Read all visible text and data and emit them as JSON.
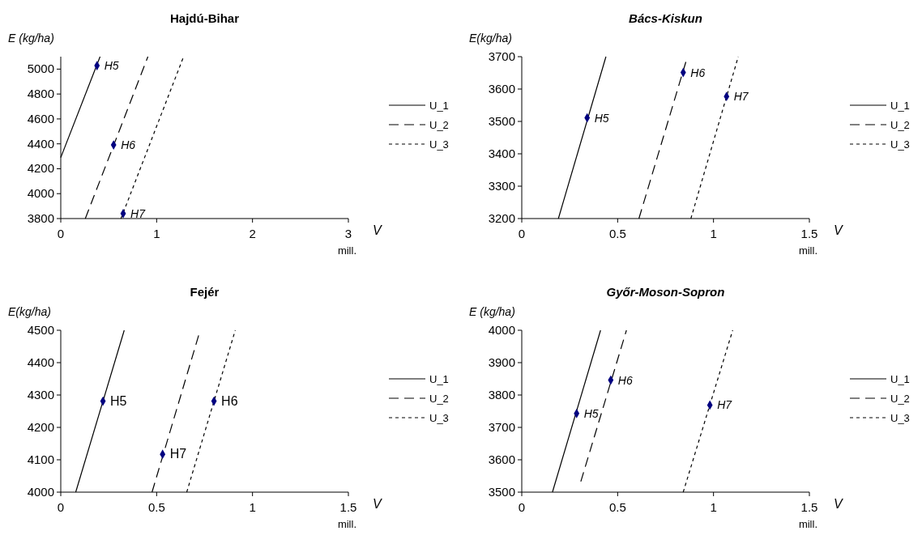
{
  "chart_data": [
    {
      "type": "line",
      "title": "Hajdú-Bihar",
      "ylabel": "E (kg/ha)",
      "xlabel": "V",
      "annotations": [
        "mill."
      ],
      "xlim": [
        0,
        3
      ],
      "xticks": [
        0,
        1,
        2,
        3
      ],
      "ylim": [
        3800,
        5100
      ],
      "yticks": [
        3800,
        4000,
        4200,
        4400,
        4600,
        4800,
        5000
      ],
      "grid": false,
      "legend": "right",
      "series": [
        {
          "name": "U_1",
          "color": "#000000",
          "line_style": "solid",
          "marker": "none",
          "x": [
            0,
            0.41
          ],
          "values": [
            4290,
            5100
          ]
        },
        {
          "name": "U_2",
          "color": "#000000",
          "line_style": "dashed",
          "marker": "none",
          "x": [
            0.256,
            0.909
          ],
          "values": [
            3800,
            5100
          ]
        },
        {
          "name": "U_3",
          "color": "#000000",
          "line_style": "dashed",
          "marker": "none",
          "x": [
            0.628,
            1.281
          ],
          "values": [
            3800,
            5100
          ]
        },
        {
          "type": "scatter",
          "color": "#000080",
          "marker": "diamond",
          "x": [
            0.378,
            0.551,
            0.651
          ],
          "values": [
            5028,
            4391,
            3840
          ],
          "value_labels": [
            "H5",
            "H6",
            "H7"
          ]
        }
      ]
    },
    {
      "type": "line",
      "title": "Bács-Kiskun",
      "ylabel": "E(kg/ha)",
      "xlabel": "V",
      "annotations": [
        "mill."
      ],
      "xlim": [
        0,
        1.5
      ],
      "xticks": [
        0,
        0.5,
        1,
        1.5
      ],
      "ylim": [
        3200,
        3700
      ],
      "yticks": [
        3200,
        3300,
        3400,
        3500,
        3600,
        3700
      ],
      "grid": false,
      "legend": "right",
      "series": [
        {
          "name": "U_1",
          "color": "#000000",
          "line_style": "solid",
          "marker": "none",
          "x": [
            0.191,
            0.439
          ],
          "values": [
            3200,
            3700
          ]
        },
        {
          "name": "U_2",
          "color": "#000000",
          "line_style": "dashed",
          "marker": "none",
          "x": [
            0.611,
            0.864
          ],
          "values": [
            3200,
            3700
          ]
        },
        {
          "name": "U_3",
          "color": "#000000",
          "line_style": "dashed",
          "marker": "none",
          "x": [
            0.882,
            1.129
          ],
          "values": [
            3200,
            3700
          ]
        },
        {
          "type": "scatter",
          "color": "#000080",
          "marker": "diamond",
          "x": [
            0.341,
            0.842,
            1.068
          ],
          "values": [
            3511,
            3651,
            3577
          ],
          "value_labels": [
            "H5",
            "H6",
            "H7"
          ]
        }
      ]
    },
    {
      "type": "line",
      "title": "Fejér",
      "ylabel": "E(kg/ha)",
      "xlabel": "V",
      "annotations": [
        "mill."
      ],
      "xlim": [
        0,
        1.5
      ],
      "xticks": [
        0,
        0.5,
        1,
        1.5
      ],
      "ylim": [
        4000,
        4500
      ],
      "yticks": [
        4000,
        4100,
        4200,
        4300,
        4400,
        4500
      ],
      "grid": false,
      "legend": "right",
      "series": [
        {
          "name": "U_1",
          "color": "#000000",
          "line_style": "solid",
          "marker": "none",
          "x": [
            0.078,
            0.331
          ],
          "values": [
            4000,
            4500
          ]
        },
        {
          "name": "U_2",
          "color": "#000000",
          "line_style": "dashed",
          "marker": "none",
          "x": [
            0.476,
            0.727
          ],
          "values": [
            4000,
            4500
          ]
        },
        {
          "name": "U_3",
          "color": "#000000",
          "line_style": "dashed",
          "marker": "none",
          "x": [
            0.657,
            0.91
          ],
          "values": [
            4000,
            4500
          ]
        },
        {
          "type": "scatter",
          "color": "#000080",
          "marker": "diamond",
          "x": [
            0.22,
            0.799,
            0.531
          ],
          "values": [
            4281,
            4281,
            4117
          ],
          "value_labels": [
            "H5",
            "H6",
            "H7"
          ]
        }
      ]
    },
    {
      "type": "line",
      "title": "Győr-Moson-Sopron",
      "ylabel": "E (kg/ha)",
      "xlabel": "V",
      "annotations": [
        "mill."
      ],
      "xlim": [
        0,
        1.5
      ],
      "xticks": [
        0,
        0.5,
        1,
        1.5
      ],
      "ylim": [
        3500,
        4000
      ],
      "yticks": [
        3500,
        3600,
        3700,
        3800,
        3900,
        4000
      ],
      "grid": false,
      "legend": "right",
      "series": [
        {
          "name": "U_1",
          "color": "#000000",
          "line_style": "solid",
          "marker": "none",
          "x": [
            0.16,
            0.411
          ],
          "values": [
            3500,
            4000
          ]
        },
        {
          "name": "U_2",
          "color": "#000000",
          "line_style": "dashed",
          "marker": "none",
          "x": [
            0.308,
            0.546
          ],
          "values": [
            3533,
            4000
          ]
        },
        {
          "name": "U_3",
          "color": "#000000",
          "line_style": "dashed",
          "marker": "none",
          "x": [
            0.842,
            1.1
          ],
          "values": [
            3500,
            4000
          ]
        },
        {
          "type": "scatter",
          "color": "#000080",
          "marker": "diamond",
          "x": [
            0.286,
            0.464,
            0.981
          ],
          "values": [
            3743,
            3846,
            3769
          ],
          "value_labels": [
            "H5",
            "H6",
            "H7"
          ]
        }
      ]
    }
  ]
}
